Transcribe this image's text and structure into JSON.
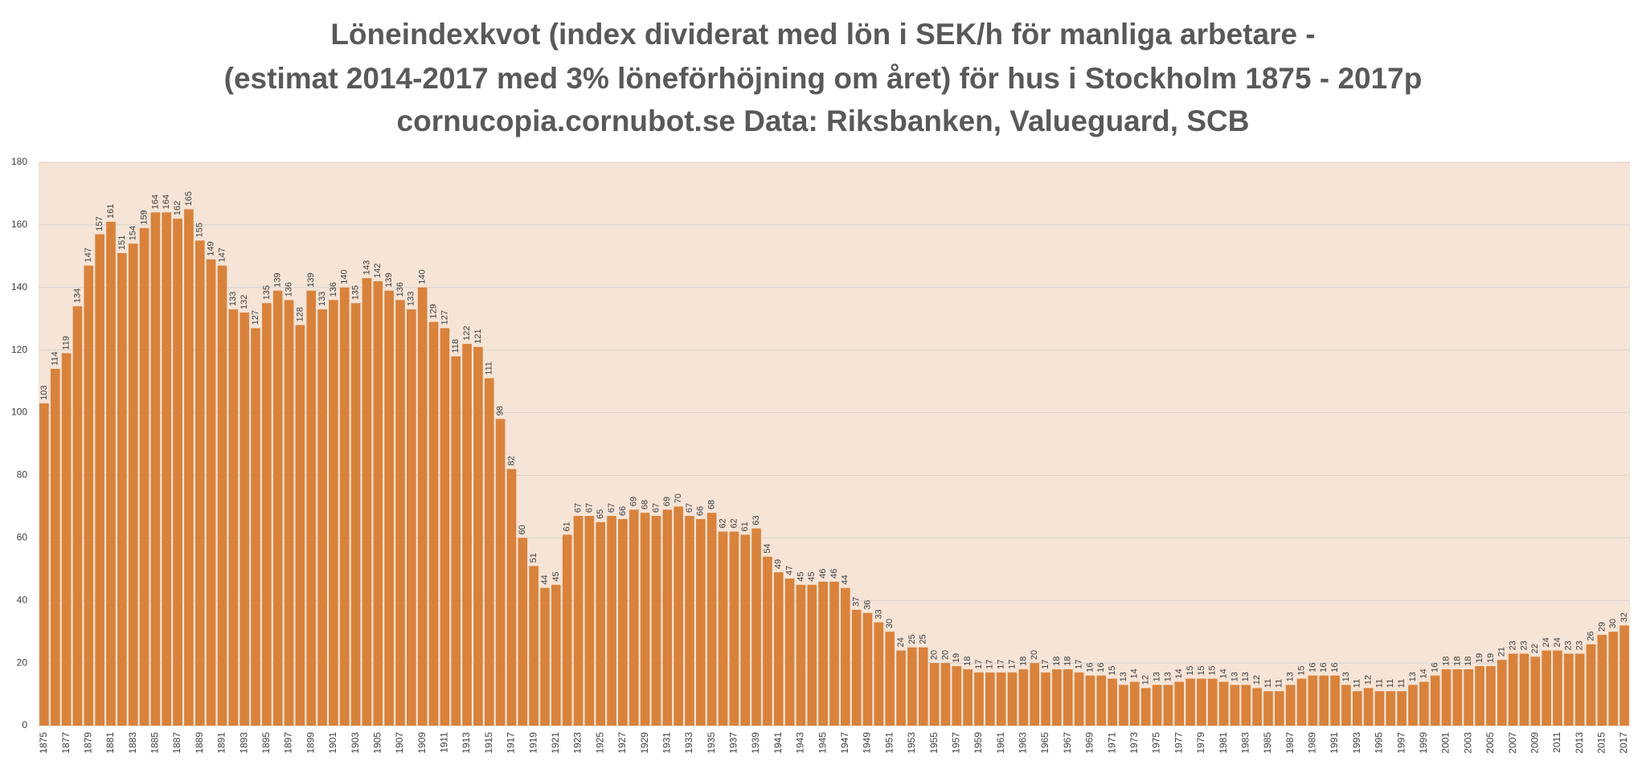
{
  "chart_data": {
    "type": "bar",
    "title": [
      "Löneindexkvot (index dividerat med lön i SEK/h för manliga arbetare -",
      "(estimat 2014-2017 med 3% löneförhöjning om året) för hus i Stockholm 1875 - 2017p",
      "cornucopia.cornubot.se Data: Riksbanken, Valueguard, SCB"
    ],
    "categories": [
      "1875",
      null,
      "1877",
      null,
      "1879",
      null,
      "1881",
      null,
      "1883",
      null,
      "1885",
      null,
      "1887",
      null,
      "1889",
      null,
      "1891",
      null,
      "1893",
      null,
      "1895",
      null,
      "1897",
      null,
      "1899",
      null,
      "1901",
      null,
      "1903",
      null,
      "1905",
      null,
      "1907",
      null,
      "1909",
      null,
      "1911",
      null,
      "1913",
      null,
      "1915",
      null,
      "1917",
      null,
      "1919",
      null,
      "1921",
      null,
      "1923",
      null,
      "1925",
      null,
      "1927",
      null,
      "1929",
      null,
      "1931",
      null,
      "1933",
      null,
      "1935",
      null,
      "1937",
      null,
      "1939",
      null,
      "1941",
      null,
      "1943",
      null,
      "1945",
      null,
      "1947",
      null,
      "1949",
      null,
      "1951",
      null,
      "1953",
      null,
      "1955",
      null,
      "1957",
      null,
      "1959",
      null,
      "1961",
      null,
      "1963",
      null,
      "1965",
      null,
      "1967",
      null,
      "1969",
      null,
      "1971",
      null,
      "1973",
      null,
      "1975",
      null,
      "1977",
      null,
      "1979",
      null,
      "1981",
      null,
      "1983",
      null,
      "1985",
      null,
      "1987",
      null,
      "1989",
      null,
      "1991",
      null,
      "1993",
      null,
      "1995",
      null,
      "1997",
      null,
      "1999",
      null,
      "2001",
      null,
      "2003",
      null,
      "2005",
      null,
      "2007",
      null,
      "2009",
      null,
      "2011",
      null,
      "2013",
      null,
      "2015",
      null,
      "2017"
    ],
    "values": [
      103,
      114,
      119,
      134,
      147,
      157,
      161,
      151,
      154,
      159,
      164,
      164,
      162,
      165,
      155,
      149,
      147,
      133,
      132,
      127,
      135,
      139,
      136,
      128,
      139,
      133,
      136,
      140,
      135,
      143,
      142,
      139,
      136,
      133,
      140,
      129,
      127,
      118,
      122,
      121,
      111,
      98,
      82,
      60,
      51,
      44,
      45,
      61,
      67,
      67,
      65,
      67,
      66,
      69,
      68,
      67,
      69,
      70,
      67,
      66,
      68,
      62,
      62,
      61,
      63,
      54,
      49,
      47,
      45,
      45,
      46,
      46,
      44,
      37,
      36,
      33,
      30,
      24,
      25,
      25,
      20,
      20,
      19,
      18,
      17,
      17,
      17,
      17,
      18,
      20,
      17,
      18,
      18,
      17,
      16,
      16,
      15,
      13,
      14,
      12,
      13,
      13,
      14,
      15,
      15,
      15,
      14,
      13,
      13,
      12,
      11,
      11,
      13,
      15,
      16,
      16,
      16,
      13,
      11,
      12,
      11,
      11,
      11,
      13,
      14,
      16,
      18,
      18,
      18,
      19,
      19,
      21,
      23,
      23,
      22,
      24,
      24,
      23,
      23,
      26,
      29,
      30,
      32
    ],
    "color": "#d9823b",
    "plot_background": "#f6e4d6",
    "ylim": [
      0,
      180
    ],
    "yticks": [
      0,
      20,
      40,
      60,
      80,
      100,
      120,
      140,
      160,
      180
    ],
    "grid": true
  }
}
